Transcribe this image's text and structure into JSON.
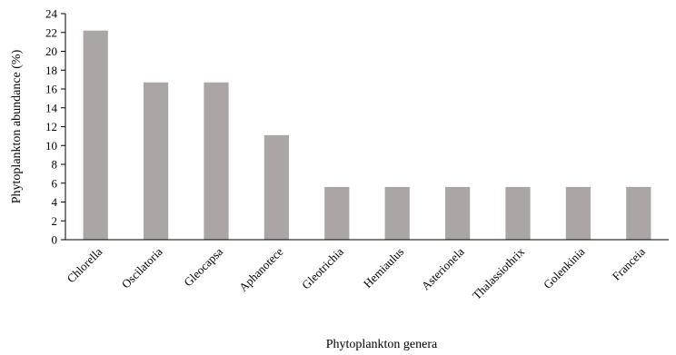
{
  "chart_data": {
    "type": "bar",
    "title": "",
    "xlabel": "Phytoplankton genera",
    "ylabel": "Phytoplankton abundance (%)",
    "ylim": [
      0,
      24
    ],
    "yticks": [
      0,
      2,
      4,
      6,
      8,
      10,
      12,
      14,
      16,
      18,
      20,
      22,
      24
    ],
    "grid": false,
    "legend": "none",
    "bar_color": "#aba5a4",
    "categories": [
      "Chlorella",
      "Oscilatoria",
      "Gleocapsa",
      "Aphanotece",
      "Gleotrichia",
      "Hemiaulus",
      "Asterionela",
      "Thalassiothrix",
      "Golenkinia",
      "Franceia"
    ],
    "values": [
      22.2,
      16.7,
      16.7,
      11.1,
      5.6,
      5.6,
      5.6,
      5.6,
      5.6,
      5.6
    ]
  }
}
